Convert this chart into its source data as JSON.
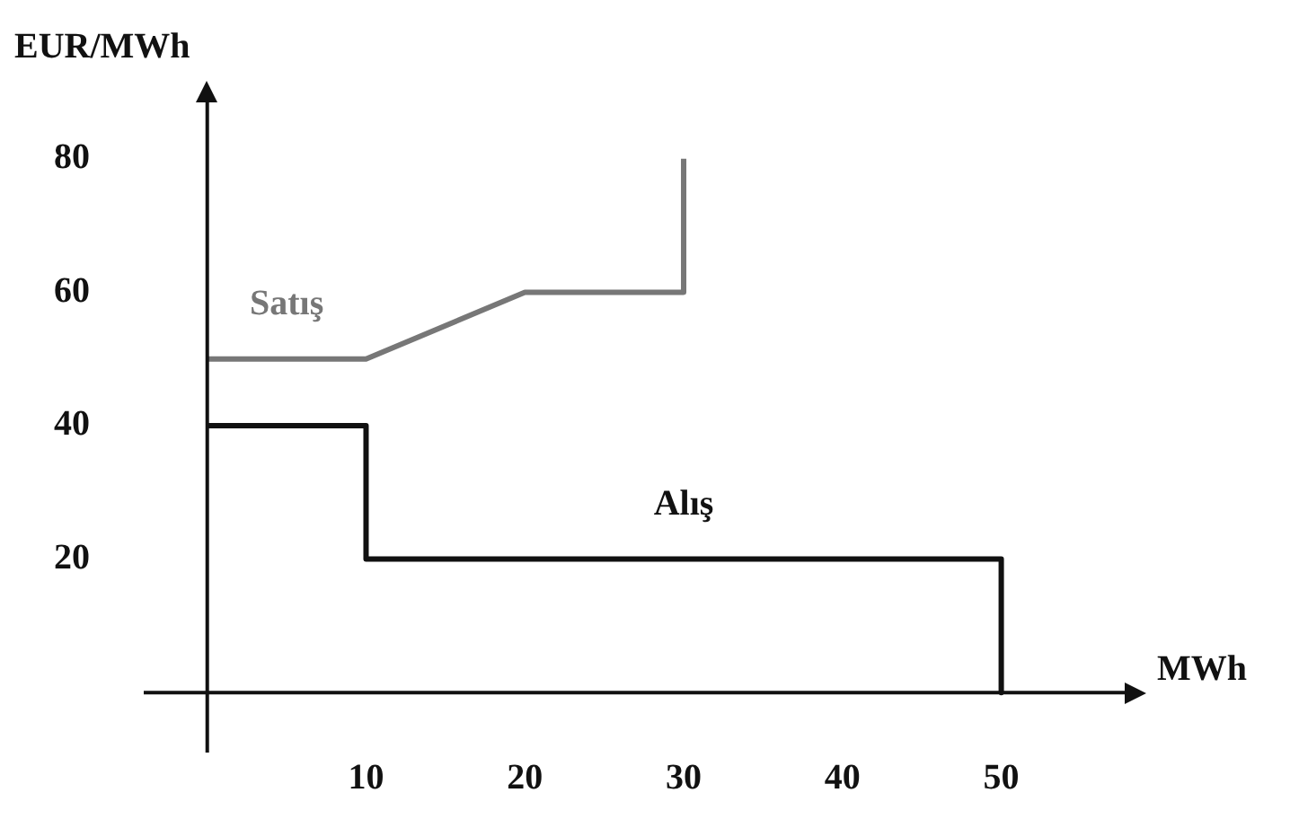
{
  "chart_data": {
    "type": "line",
    "xlabel": "MWh",
    "ylabel": "EUR/MWh",
    "xlim": [
      -4,
      58
    ],
    "ylim": [
      -9,
      89
    ],
    "xticks": [
      10,
      20,
      30,
      40,
      50
    ],
    "yticks": [
      20,
      40,
      60,
      80
    ],
    "grid": false,
    "legend": false,
    "marker": "none",
    "line_style": "solid",
    "series": [
      {
        "name": "Satış",
        "color": "#777777",
        "x": [
          0,
          10,
          20,
          30,
          30
        ],
        "values": [
          50,
          50,
          60,
          60,
          80
        ]
      },
      {
        "name": "Alış",
        "color": "#111111",
        "x": [
          0,
          10,
          10,
          50,
          50
        ],
        "values": [
          40,
          40,
          20,
          20,
          0
        ]
      }
    ]
  }
}
